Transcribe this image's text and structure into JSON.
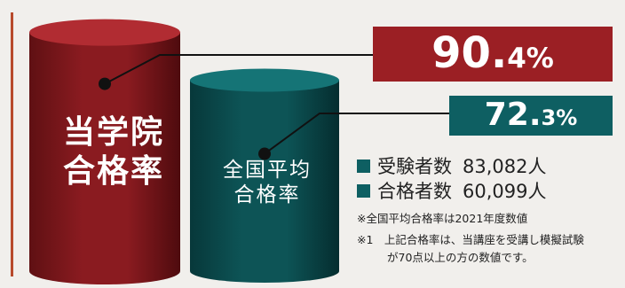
{
  "chart_data": {
    "type": "bar",
    "categories": [
      "当学院\n合格率",
      "全国平均\n合格率"
    ],
    "values": [
      90.4,
      72.3
    ],
    "colors": [
      "#9b1f24",
      "#0e5f62"
    ],
    "title": "",
    "xlabel": "",
    "ylabel": ""
  },
  "labels": {
    "main_line1": "当学院",
    "main_line2": "合格率",
    "avg_line1": "全国平均",
    "avg_line2": "合格率"
  },
  "rates": {
    "main_int": "90",
    "main_dec": "4%",
    "avg_int": "72",
    "avg_dec": "3%",
    "dot": "."
  },
  "stats": {
    "examinees_label": "受験者数",
    "examinees_value": "83,082人",
    "passers_label": "合格者数",
    "passers_value": "60,099人"
  },
  "notes": {
    "note1": "※全国平均合格率は2021年度数値",
    "note2": "※1　上記合格率は、当講座を受講し模擬試験",
    "note3": "が70点以上の方の数値です。"
  },
  "colors": {
    "main": "#9b1f24",
    "average": "#0e5f62",
    "background": "#f1efec",
    "accent_rule": "#b84a2c"
  }
}
